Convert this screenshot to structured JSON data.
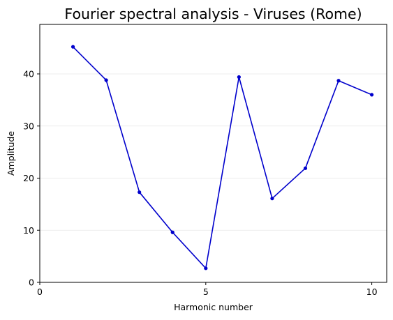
{
  "chart_data": {
    "type": "line",
    "title": "Fourier spectral analysis - Viruses (Rome)",
    "xlabel": "Harmonic number",
    "ylabel": "Amplitude",
    "xlim": [
      0,
      10.45
    ],
    "ylim": [
      0,
      49.5
    ],
    "xticks": [
      0,
      5,
      10
    ],
    "yticks": [
      0,
      10,
      20,
      30,
      40
    ],
    "grid": "horizontal",
    "series": [
      {
        "color": "#0000cc",
        "x": [
          1,
          2,
          3,
          4,
          5,
          6,
          7,
          8,
          9,
          10
        ],
        "values": [
          45.2,
          38.8,
          17.3,
          9.6,
          2.7,
          39.4,
          16.1,
          21.9,
          38.7,
          36.0
        ]
      }
    ]
  }
}
